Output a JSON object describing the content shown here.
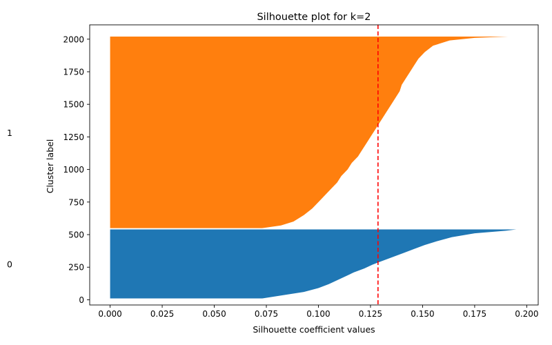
{
  "chart_data": {
    "type": "silhouette",
    "title": "Silhouette plot for k=2",
    "xlabel": "Silhouette coefficient values",
    "ylabel": "Cluster label",
    "xlim": [
      -0.0098,
      0.2055
    ],
    "ylim": [
      -40,
      2110
    ],
    "xticks": [
      0.0,
      0.025,
      0.05,
      0.075,
      0.1,
      0.125,
      0.15,
      0.175,
      0.2
    ],
    "xtick_labels": [
      "0.000",
      "0.025",
      "0.050",
      "0.075",
      "0.100",
      "0.125",
      "0.150",
      "0.175",
      "0.200"
    ],
    "yticks": [
      0,
      250,
      500,
      750,
      1000,
      1250,
      1500,
      1750,
      2000
    ],
    "ytick_labels": [
      "0",
      "250",
      "500",
      "750",
      "1000",
      "1250",
      "1500",
      "1750",
      "2000"
    ],
    "average_silhouette": 0.1286,
    "average_line_color": "#ff0000",
    "clusters": [
      {
        "label": "0",
        "color": "#1f77b4",
        "y_lower": 10,
        "y_upper": 540,
        "label_y": 275,
        "profile": [
          [
            10,
            0.073
          ],
          [
            40,
            0.085
          ],
          [
            60,
            0.093
          ],
          [
            90,
            0.1
          ],
          [
            120,
            0.105
          ],
          [
            150,
            0.109
          ],
          [
            180,
            0.113
          ],
          [
            210,
            0.117
          ],
          [
            240,
            0.122
          ],
          [
            270,
            0.126
          ],
          [
            300,
            0.131
          ],
          [
            330,
            0.136
          ],
          [
            360,
            0.141
          ],
          [
            390,
            0.146
          ],
          [
            420,
            0.151
          ],
          [
            450,
            0.157
          ],
          [
            480,
            0.164
          ],
          [
            510,
            0.175
          ],
          [
            530,
            0.19
          ],
          [
            540,
            0.195
          ]
        ]
      },
      {
        "label": "1",
        "color": "#ff7f0e",
        "y_lower": 550,
        "y_upper": 2020,
        "label_y": 1285,
        "profile": [
          [
            550,
            0.073
          ],
          [
            570,
            0.082
          ],
          [
            600,
            0.088
          ],
          [
            650,
            0.093
          ],
          [
            700,
            0.097
          ],
          [
            750,
            0.1
          ],
          [
            800,
            0.103
          ],
          [
            850,
            0.106
          ],
          [
            900,
            0.109
          ],
          [
            950,
            0.111
          ],
          [
            1000,
            0.114
          ],
          [
            1050,
            0.116
          ],
          [
            1100,
            0.119
          ],
          [
            1150,
            0.121
          ],
          [
            1200,
            0.123
          ],
          [
            1250,
            0.125
          ],
          [
            1300,
            0.127
          ],
          [
            1350,
            0.129
          ],
          [
            1400,
            0.131
          ],
          [
            1450,
            0.133
          ],
          [
            1500,
            0.135
          ],
          [
            1550,
            0.137
          ],
          [
            1600,
            0.139
          ],
          [
            1650,
            0.14
          ],
          [
            1700,
            0.142
          ],
          [
            1750,
            0.144
          ],
          [
            1800,
            0.146
          ],
          [
            1850,
            0.148
          ],
          [
            1900,
            0.151
          ],
          [
            1950,
            0.155
          ],
          [
            1990,
            0.163
          ],
          [
            2010,
            0.175
          ],
          [
            2020,
            0.191
          ]
        ]
      }
    ]
  }
}
